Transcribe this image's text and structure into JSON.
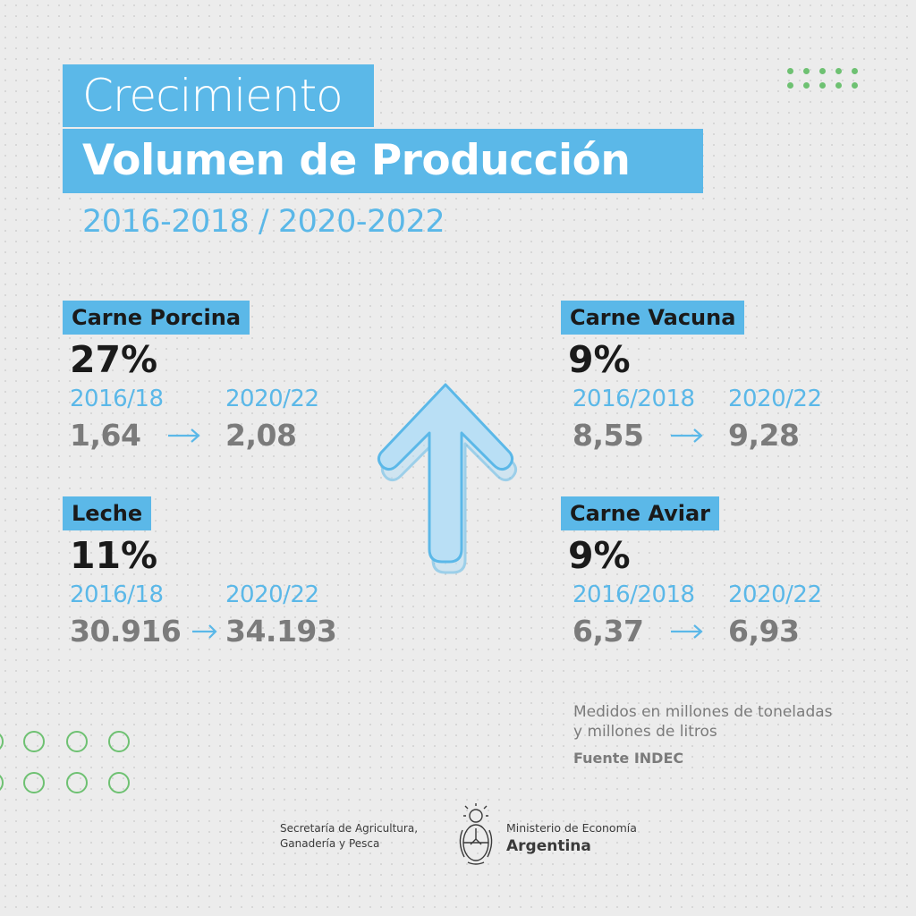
{
  "header": {
    "title_line1": "Crecimiento",
    "title_line2": "Volumen de Producción",
    "period": "2016-2018 / 2020-2022"
  },
  "items": [
    {
      "label": "Carne Porcina",
      "percent": "27%",
      "year_from": "2016/18",
      "year_to": "2020/22",
      "value_from": "1,64",
      "value_to": "2,08"
    },
    {
      "label": "Leche",
      "percent": "11%",
      "year_from": "2016/18",
      "year_to": "2020/22",
      "value_from": "30.916",
      "value_to": "34.193"
    },
    {
      "label": "Carne Vacuna",
      "percent": "9%",
      "year_from": "2016/2018",
      "year_to": "2020/22",
      "value_from": "8,55",
      "value_to": "9,28"
    },
    {
      "label": "Carne Aviar",
      "percent": "9%",
      "year_from": "2016/2018",
      "year_to": "2020/22",
      "value_from": "6,37",
      "value_to": "6,93"
    }
  ],
  "note": {
    "line1": "Medidos en millones de toneladas",
    "line2": "y millones de litros",
    "source": "Fuente INDEC"
  },
  "footer": {
    "left_line1": "Secretaría de Agricultura,",
    "left_line2": "Ganadería y Pesca",
    "right_line1": "Ministerio de Economía",
    "right_line2": "Argentina"
  },
  "icons": {
    "big_arrow": "arrow-up-icon",
    "small_arrow": "arrow-right-icon",
    "emblem": "coat-of-arms-icon"
  },
  "colors": {
    "accent_blue": "#5bb8e8",
    "arrow_fill": "#b9dff5",
    "green": "#6ec172",
    "value_gray": "#7b7b7b",
    "text_dark": "#1a1a1a"
  }
}
